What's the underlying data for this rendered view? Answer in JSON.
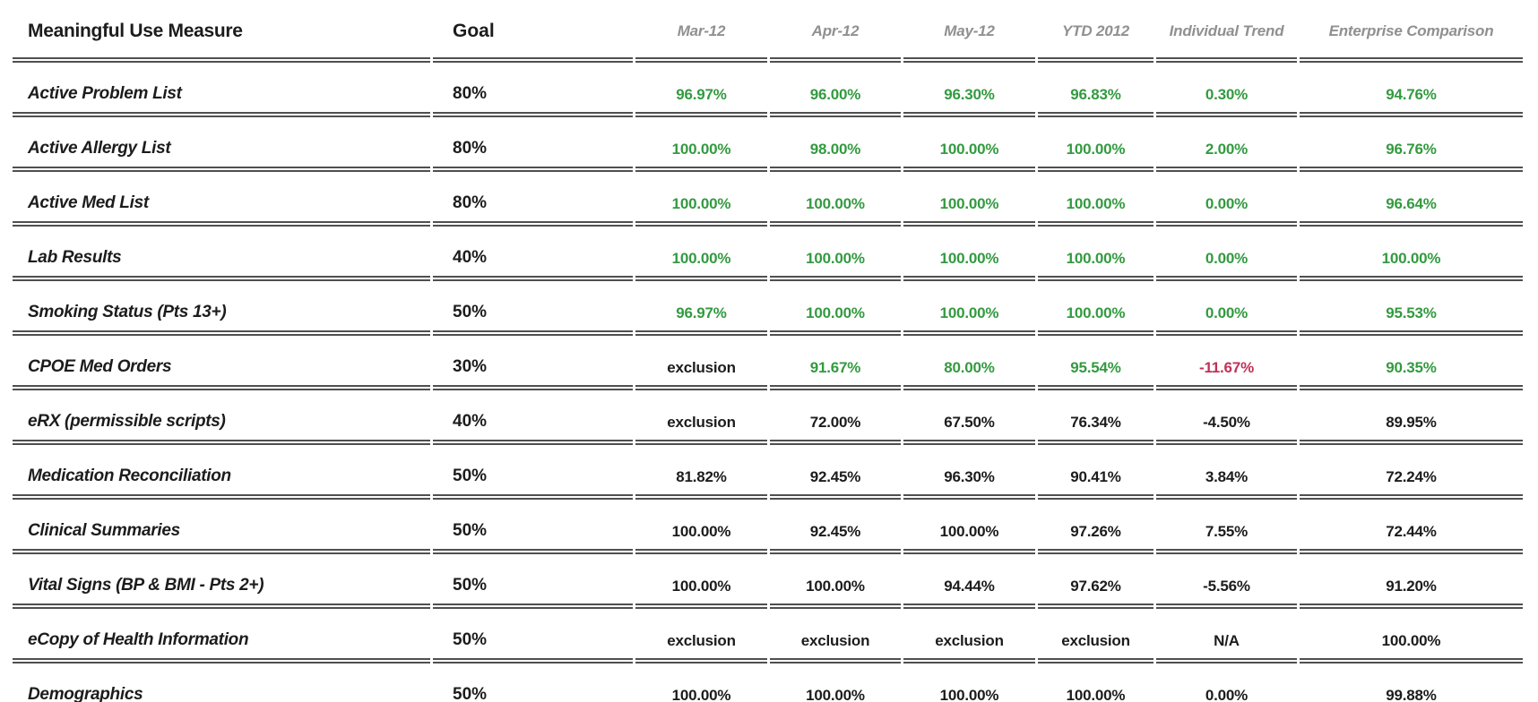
{
  "colors": {
    "green": "#339A40",
    "red": "#C13157",
    "gray_header": "#909090",
    "text": "#1C1C1C",
    "line": "#4F4F4F"
  },
  "table": {
    "header": {
      "measure": "Meaningful Use Measure",
      "goal": "Goal",
      "mar": "Mar-12",
      "apr": "Apr-12",
      "may": "May-12",
      "ytd": "YTD 2012",
      "trend": "Individual\nTrend",
      "enterprise": "Enterprise\nComparison"
    },
    "value_columns": [
      "mar-12",
      "apr-12",
      "may-12",
      "ytd-2012",
      "individual-trend",
      "enterprise-comparison"
    ],
    "rows": [
      {
        "measure": "Active Problem List",
        "goal": "80%",
        "values": [
          {
            "text": "96.97%",
            "color": "green"
          },
          {
            "text": "96.00%",
            "color": "green"
          },
          {
            "text": "96.30%",
            "color": "green"
          },
          {
            "text": "96.83%",
            "color": "green"
          },
          {
            "text": "0.30%",
            "color": "green"
          },
          {
            "text": "94.76%",
            "color": "green"
          }
        ]
      },
      {
        "measure": "Active Allergy List",
        "goal": "80%",
        "values": [
          {
            "text": "100.00%",
            "color": "green"
          },
          {
            "text": "98.00%",
            "color": "green"
          },
          {
            "text": "100.00%",
            "color": "green"
          },
          {
            "text": "100.00%",
            "color": "green"
          },
          {
            "text": "2.00%",
            "color": "green"
          },
          {
            "text": "96.76%",
            "color": "green"
          }
        ]
      },
      {
        "measure": "Active Med List",
        "goal": "80%",
        "values": [
          {
            "text": "100.00%",
            "color": "green"
          },
          {
            "text": "100.00%",
            "color": "green"
          },
          {
            "text": "100.00%",
            "color": "green"
          },
          {
            "text": "100.00%",
            "color": "green"
          },
          {
            "text": "0.00%",
            "color": "green"
          },
          {
            "text": "96.64%",
            "color": "green"
          }
        ]
      },
      {
        "measure": "Lab Results",
        "goal": "40%",
        "values": [
          {
            "text": "100.00%",
            "color": "green"
          },
          {
            "text": "100.00%",
            "color": "green"
          },
          {
            "text": "100.00%",
            "color": "green"
          },
          {
            "text": "100.00%",
            "color": "green"
          },
          {
            "text": "0.00%",
            "color": "green"
          },
          {
            "text": "100.00%",
            "color": "green"
          }
        ]
      },
      {
        "measure": "Smoking Status (Pts 13+)",
        "goal": "50%",
        "values": [
          {
            "text": "96.97%",
            "color": "green"
          },
          {
            "text": "100.00%",
            "color": "green"
          },
          {
            "text": "100.00%",
            "color": "green"
          },
          {
            "text": "100.00%",
            "color": "green"
          },
          {
            "text": "0.00%",
            "color": "green"
          },
          {
            "text": "95.53%",
            "color": "green"
          }
        ]
      },
      {
        "measure": "CPOE Med Orders",
        "goal": "30%",
        "values": [
          {
            "text": "exclusion",
            "color": "black"
          },
          {
            "text": "91.67%",
            "color": "green"
          },
          {
            "text": "80.00%",
            "color": "green"
          },
          {
            "text": "95.54%",
            "color": "green"
          },
          {
            "text": "-11.67%",
            "color": "red"
          },
          {
            "text": "90.35%",
            "color": "green"
          }
        ]
      },
      {
        "measure": "eRX (permissible scripts)",
        "goal": "40%",
        "values": [
          {
            "text": "exclusion",
            "color": "black"
          },
          {
            "text": "72.00%",
            "color": "black"
          },
          {
            "text": "67.50%",
            "color": "black"
          },
          {
            "text": "76.34%",
            "color": "black"
          },
          {
            "text": "-4.50%",
            "color": "black"
          },
          {
            "text": "89.95%",
            "color": "black"
          }
        ]
      },
      {
        "measure": "Medication Reconciliation",
        "goal": "50%",
        "values": [
          {
            "text": "81.82%",
            "color": "black"
          },
          {
            "text": "92.45%",
            "color": "black"
          },
          {
            "text": "96.30%",
            "color": "black"
          },
          {
            "text": "90.41%",
            "color": "black"
          },
          {
            "text": "3.84%",
            "color": "black"
          },
          {
            "text": "72.24%",
            "color": "black"
          }
        ]
      },
      {
        "measure": "Clinical Summaries",
        "goal": "50%",
        "values": [
          {
            "text": "100.00%",
            "color": "black"
          },
          {
            "text": "92.45%",
            "color": "black"
          },
          {
            "text": "100.00%",
            "color": "black"
          },
          {
            "text": "97.26%",
            "color": "black"
          },
          {
            "text": "7.55%",
            "color": "black"
          },
          {
            "text": "72.44%",
            "color": "black"
          }
        ]
      },
      {
        "measure": "Vital Signs (BP & BMI - Pts 2+)",
        "goal": "50%",
        "values": [
          {
            "text": "100.00%",
            "color": "black"
          },
          {
            "text": "100.00%",
            "color": "black"
          },
          {
            "text": "94.44%",
            "color": "black"
          },
          {
            "text": "97.62%",
            "color": "black"
          },
          {
            "text": "-5.56%",
            "color": "black"
          },
          {
            "text": "91.20%",
            "color": "black"
          }
        ]
      },
      {
        "measure": "eCopy of Health Information",
        "goal": "50%",
        "values": [
          {
            "text": "exclusion",
            "color": "black"
          },
          {
            "text": "exclusion",
            "color": "black"
          },
          {
            "text": "exclusion",
            "color": "black"
          },
          {
            "text": "exclusion",
            "color": "black"
          },
          {
            "text": "N/A",
            "color": "black"
          },
          {
            "text": "100.00%",
            "color": "black"
          }
        ]
      },
      {
        "measure": "Demographics",
        "goal": "50%",
        "values": [
          {
            "text": "100.00%",
            "color": "black"
          },
          {
            "text": "100.00%",
            "color": "black"
          },
          {
            "text": "100.00%",
            "color": "black"
          },
          {
            "text": "100.00%",
            "color": "black"
          },
          {
            "text": "0.00%",
            "color": "black"
          },
          {
            "text": "99.88%",
            "color": "black"
          }
        ]
      }
    ]
  }
}
